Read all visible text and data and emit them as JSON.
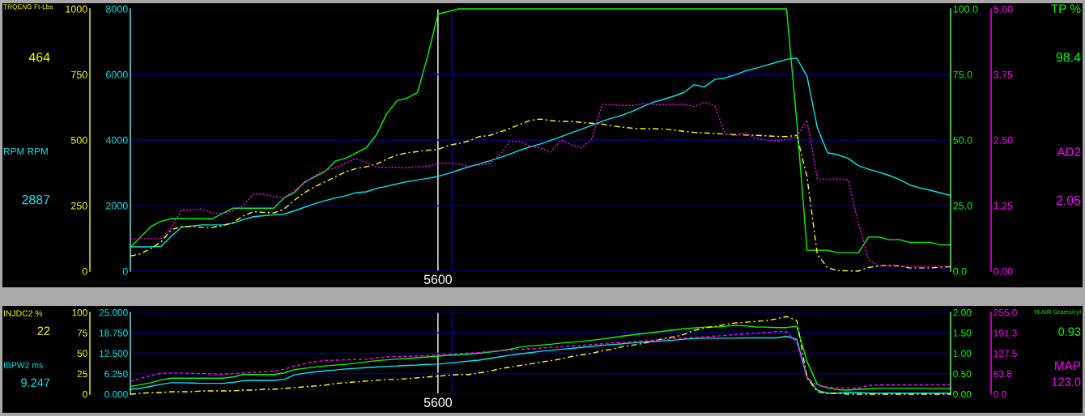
{
  "chart_data": [
    {
      "type": "line",
      "categories": [
        null,
        null,
        null,
        null,
        null,
        null,
        null,
        null,
        null,
        null,
        null,
        null,
        null,
        null,
        null,
        null,
        null,
        null,
        null,
        null,
        null,
        null,
        null,
        null,
        null,
        null,
        null,
        null,
        null,
        null,
        "5600",
        null,
        null,
        null,
        null,
        null,
        null,
        null,
        null,
        null,
        null,
        null,
        null,
        null,
        null,
        null,
        null,
        null,
        null,
        null,
        null,
        null,
        null,
        null,
        null,
        null,
        null,
        null,
        null,
        null,
        null,
        null,
        null,
        null,
        null,
        null,
        null,
        null,
        null,
        null,
        null,
        null,
        null,
        null,
        null,
        null,
        null,
        null,
        null,
        null,
        null
      ],
      "series": [
        {
          "color": "#ffff00",
          "axis": "y3",
          "line_style": "dashdot",
          "values": [
            58,
            66,
            86,
            112,
            158,
            170,
            170,
            167,
            167,
            173,
            185,
            210,
            227,
            224,
            222,
            237,
            270,
            300,
            322,
            341,
            360,
            379,
            391,
            398,
            408,
            427,
            443,
            451,
            456,
            461,
            464,
            479,
            487,
            496,
            513,
            517,
            530,
            544,
            560,
            575,
            580,
            574,
            571,
            571,
            567,
            564,
            561,
            554,
            549,
            545,
            543,
            543,
            542,
            538,
            533,
            529,
            527,
            525,
            523,
            521,
            519,
            518,
            516,
            514,
            513,
            518,
            358,
            64,
            13,
            2,
            1,
            0,
            14,
            20,
            22,
            20,
            12,
            12,
            12,
            15,
            17
          ]
        },
        {
          "color": "#00e8f0",
          "line_style": "solid",
          "values": [
            740,
            740,
            740,
            760,
            1070,
            1340,
            1380,
            1410,
            1410,
            1410,
            1460,
            1570,
            1660,
            1690,
            1720,
            1740,
            1840,
            1950,
            2060,
            2150,
            2230,
            2300,
            2390,
            2420,
            2520,
            2590,
            2660,
            2730,
            2780,
            2830,
            2890,
            2980,
            3080,
            3180,
            3270,
            3360,
            3460,
            3570,
            3690,
            3790,
            3880,
            3990,
            4100,
            4220,
            4330,
            4450,
            4570,
            4670,
            4760,
            4880,
            5020,
            5150,
            5240,
            5340,
            5450,
            5690,
            5620,
            5850,
            5890,
            5990,
            6110,
            6190,
            6280,
            6370,
            6460,
            6500,
            5940,
            4380,
            3610,
            3550,
            3440,
            3220,
            3110,
            3020,
            2920,
            2800,
            2630,
            2540,
            2470,
            2390,
            2310
          ]
        },
        {
          "color": "#00ff00",
          "axis": "y2",
          "line_style": "solid",
          "values": [
            9,
            13,
            17,
            19,
            20,
            20,
            20,
            20,
            20,
            22,
            24,
            24,
            24,
            24,
            24,
            28,
            30,
            34,
            36,
            38,
            42,
            43,
            45,
            47,
            52,
            60,
            65,
            66,
            68,
            82,
            98,
            99,
            100,
            100,
            100,
            100,
            100,
            100,
            100,
            100,
            100,
            100,
            100,
            100,
            100,
            100,
            100,
            100,
            100,
            100,
            100,
            100,
            100,
            100,
            100,
            100,
            100,
            100,
            100,
            100,
            100,
            100,
            100,
            100,
            100,
            57,
            8,
            8,
            8,
            7,
            7,
            7,
            13,
            13,
            12,
            12,
            11,
            11,
            11,
            10,
            10
          ]
        }
      ],
      "ylabel": "RPM RPM",
      "y2label": "TP %",
      "y3label": "TRQENG Ft-Lbs",
      "ylim": [
        0,
        8000
      ],
      "yticks": [
        0,
        2000,
        4000,
        6000,
        8000
      ],
      "y2lim": [
        0,
        100
      ],
      "y2ticks": [
        {
          "value": 0,
          "label": "0.0"
        },
        {
          "value": 25,
          "label": "25.0"
        },
        {
          "value": 50,
          "label": "50.0"
        },
        {
          "value": 75,
          "label": "75.0"
        },
        {
          "value": 100,
          "label": "100.0"
        }
      ],
      "y3lim": [
        0,
        1000
      ],
      "y3ticks": [
        0,
        250,
        500,
        750,
        1000
      ],
      "annotations": [
        "464",
        "2887",
        "98.4"
      ],
      "grid": true
    },
    {
      "type": "line",
      "categories": [
        null,
        null,
        null,
        null,
        null,
        null,
        null,
        null,
        null,
        null,
        null,
        null,
        null,
        null,
        null,
        null,
        null,
        null,
        null,
        null,
        null,
        null,
        null,
        null,
        null,
        null,
        null,
        null,
        null,
        null,
        null,
        null,
        null,
        null,
        null,
        null,
        null,
        null,
        null,
        null,
        null,
        null,
        null,
        null,
        null,
        null,
        null,
        null,
        null,
        null,
        null,
        null,
        null,
        null,
        null,
        null,
        null,
        null,
        null,
        null,
        null,
        null,
        null,
        null,
        null,
        null,
        null,
        null,
        null,
        null,
        null,
        null,
        null,
        null,
        null,
        null,
        null,
        null,
        null,
        null,
        null
      ],
      "series": [
        {
          "color": "#ff00ff",
          "line_style": "dotted",
          "values": [
            0.62,
            0.62,
            0.62,
            0.62,
            0.84,
            1.17,
            1.17,
            1.19,
            1.11,
            1.1,
            1.15,
            1.25,
            1.47,
            1.47,
            1.42,
            1.4,
            1.54,
            1.68,
            1.83,
            1.92,
            1.97,
            2.06,
            2.15,
            2.07,
            1.98,
            1.98,
            1.98,
            1.97,
            1.99,
            2.0,
            2.05,
            2.06,
            2.04,
            2.0,
            2.02,
            2.05,
            2.2,
            2.48,
            2.47,
            2.38,
            2.35,
            2.27,
            2.5,
            2.41,
            2.35,
            2.52,
            3.18,
            3.17,
            3.16,
            3.16,
            3.19,
            3.18,
            3.18,
            3.18,
            3.18,
            3.14,
            3.22,
            3.15,
            2.62,
            2.58,
            2.64,
            2.53,
            2.5,
            2.49,
            2.51,
            2.56,
            2.88,
            1.76,
            1.75,
            1.76,
            1.74,
            0.92,
            0.22,
            0.1,
            0.1,
            0.09,
            0.09,
            0.09,
            0.09,
            0.09,
            0.09
          ]
        }
      ],
      "ylabel": "AD2",
      "ylim": [
        0,
        5
      ],
      "yticks": [
        {
          "value": 0,
          "label": "0.00"
        },
        {
          "value": 1.25,
          "label": "1.25"
        },
        {
          "value": 2.5,
          "label": "2.50"
        },
        {
          "value": 3.75,
          "label": "3.75"
        },
        {
          "value": 5,
          "label": "5.00"
        }
      ],
      "annotations": [
        "2.05"
      ]
    },
    {
      "type": "line",
      "categories": [
        null,
        null,
        null,
        null,
        null,
        null,
        null,
        null,
        null,
        null,
        null,
        null,
        null,
        null,
        null,
        null,
        null,
        null,
        null,
        null,
        null,
        null,
        null,
        null,
        null,
        null,
        null,
        null,
        null,
        null,
        "5600",
        null,
        null,
        null,
        null,
        null,
        null,
        null,
        null,
        null,
        null,
        null,
        null,
        null,
        null,
        null,
        null,
        null,
        null,
        null,
        null,
        null,
        null,
        null,
        null,
        null,
        null,
        null,
        null,
        null,
        null,
        null,
        null,
        null,
        null,
        null,
        null,
        null,
        null,
        null,
        null,
        null,
        null,
        null,
        null,
        null,
        null,
        null,
        null,
        null,
        null
      ],
      "series": [
        {
          "color": "#ffff00",
          "axis": "y3",
          "line_style": "dashdot",
          "values": [
            0,
            1,
            2,
            2,
            3,
            3,
            3,
            4,
            4,
            4,
            4,
            5,
            5,
            6,
            6,
            7,
            8,
            9,
            10,
            11,
            13,
            14,
            15,
            16,
            17,
            18,
            18,
            19,
            20,
            21,
            22,
            23,
            24,
            24,
            26,
            28,
            31,
            33,
            35,
            37,
            39,
            41,
            43,
            46,
            48,
            50,
            53,
            55,
            58,
            60,
            62,
            65,
            68,
            70,
            73,
            78,
            81,
            83,
            85,
            87,
            88,
            89,
            90,
            92,
            95,
            90,
            20,
            3,
            1,
            1,
            0,
            0,
            0,
            0,
            0,
            0,
            0,
            0,
            0,
            0,
            0
          ]
        },
        {
          "color": "#00e8f0",
          "line_style": "solid",
          "values": [
            1.5,
            1.8,
            2.4,
            3.0,
            3.5,
            3.5,
            3.4,
            3.3,
            3.3,
            3.3,
            3.6,
            4.1,
            4.2,
            4.2,
            4.2,
            4.5,
            5.9,
            6.4,
            6.8,
            7.1,
            7.4,
            7.7,
            7.9,
            8.1,
            8.3,
            8.5,
            8.6,
            8.8,
            8.9,
            9.1,
            9.2,
            9.5,
            9.8,
            10.1,
            10.4,
            10.9,
            11.4,
            11.9,
            12.3,
            12.7,
            13.1,
            13.4,
            13.7,
            14.0,
            14.3,
            14.6,
            14.9,
            15.2,
            15.4,
            15.7,
            15.9,
            16.1,
            16.3,
            16.5,
            16.8,
            17.0,
            17.1,
            17.1,
            17.1,
            17.1,
            17.2,
            17.2,
            17.2,
            17.2,
            17.7,
            16.7,
            5.2,
            1.2,
            0.3,
            0.3,
            0.5,
            0.5,
            0.3,
            0.3,
            0.3,
            0.3,
            0.3,
            0.3,
            0.3,
            0.3,
            0.3
          ]
        },
        {
          "color": "#00ff00",
          "axis": "y2",
          "line_style": "solid",
          "values": [
            0.19,
            0.23,
            0.28,
            0.35,
            0.39,
            0.39,
            0.39,
            0.39,
            0.39,
            0.39,
            0.42,
            0.48,
            0.48,
            0.48,
            0.48,
            0.52,
            0.6,
            0.63,
            0.66,
            0.69,
            0.71,
            0.73,
            0.76,
            0.79,
            0.82,
            0.84,
            0.86,
            0.87,
            0.89,
            0.91,
            0.93,
            0.95,
            0.96,
            0.98,
            1.0,
            1.03,
            1.06,
            1.1,
            1.15,
            1.18,
            1.2,
            1.22,
            1.25,
            1.27,
            1.29,
            1.32,
            1.35,
            1.38,
            1.42,
            1.45,
            1.48,
            1.51,
            1.54,
            1.57,
            1.6,
            1.62,
            1.64,
            1.64,
            1.66,
            1.68,
            1.67,
            1.64,
            1.64,
            1.63,
            1.63,
            1.66,
            0.8,
            0.24,
            0.15,
            0.11,
            0.1,
            0.12,
            0.13,
            0.14,
            0.14,
            0.14,
            0.14,
            0.14,
            0.14,
            0.14,
            0.14
          ]
        }
      ],
      "ylabel": "IBPW2 ms",
      "y2label": "YLAIR Grams/cyl",
      "y3label": "INJDC2 %",
      "ylim": [
        0,
        25
      ],
      "yticks": [
        {
          "value": 0,
          "label": "0.000"
        },
        {
          "value": 6.25,
          "label": "6.250"
        },
        {
          "value": 12.5,
          "label": "12.500"
        },
        {
          "value": 18.75,
          "label": "18.750"
        },
        {
          "value": 25,
          "label": "25.000"
        }
      ],
      "y2lim": [
        0,
        2
      ],
      "y2ticks": [
        {
          "value": 0,
          "label": "0.00"
        },
        {
          "value": 0.5,
          "label": "0.50"
        },
        {
          "value": 1,
          "label": "1.00"
        },
        {
          "value": 1.5,
          "label": "1.50"
        },
        {
          "value": 2,
          "label": "2.00"
        }
      ],
      "y3lim": [
        0,
        100
      ],
      "y3ticks": [
        0,
        25,
        50,
        75,
        100
      ],
      "annotations": [
        "22",
        "9.247",
        "0.93"
      ],
      "grid": true
    },
    {
      "type": "line",
      "categories": [
        null,
        null,
        null,
        null,
        null,
        null,
        null,
        null,
        null,
        null,
        null,
        null,
        null,
        null,
        null,
        null,
        null,
        null,
        null,
        null,
        null,
        null,
        null,
        null,
        null,
        null,
        null,
        null,
        null,
        null,
        null,
        null,
        null,
        null,
        null,
        null,
        null,
        null,
        null,
        null,
        null,
        null,
        null,
        null,
        null,
        null,
        null,
        null,
        null,
        null,
        null,
        null,
        null,
        null,
        null,
        null,
        null,
        null,
        null,
        null,
        null,
        null,
        null,
        null,
        null,
        null,
        null,
        null,
        null,
        null,
        null,
        null,
        null,
        null,
        null,
        null,
        null,
        null,
        null,
        null,
        null
      ],
      "series": [
        {
          "color": "#ff00ff",
          "line_style": "dashed",
          "values": [
            40,
            49,
            58,
            65,
            66,
            66,
            65,
            64,
            63,
            62,
            64,
            66,
            68,
            70,
            72,
            78,
            87,
            95,
            101,
            105,
            106,
            107,
            108,
            109,
            113,
            116,
            117,
            118,
            119,
            120,
            123,
            125,
            126,
            128,
            130,
            133,
            135,
            137,
            140,
            142,
            144,
            146,
            148,
            150,
            152,
            155,
            157,
            160,
            162,
            164,
            166,
            168,
            170,
            173,
            175,
            177,
            179,
            181,
            183,
            186,
            188,
            190,
            192,
            195,
            195,
            160,
            52,
            27,
            22,
            20,
            19,
            19,
            27,
            29,
            29,
            29,
            29,
            29,
            29,
            29,
            29
          ]
        }
      ],
      "ylabel": "MAP",
      "ylim": [
        0,
        255
      ],
      "yticks": [
        {
          "value": 0,
          "label": "0.0"
        },
        {
          "value": 63.75,
          "label": "63.8"
        },
        {
          "value": 127.5,
          "label": "127.5"
        },
        {
          "value": 191.25,
          "label": "191.3"
        },
        {
          "value": 255,
          "label": "255.0"
        }
      ],
      "annotations": [
        "123.0"
      ]
    }
  ]
}
